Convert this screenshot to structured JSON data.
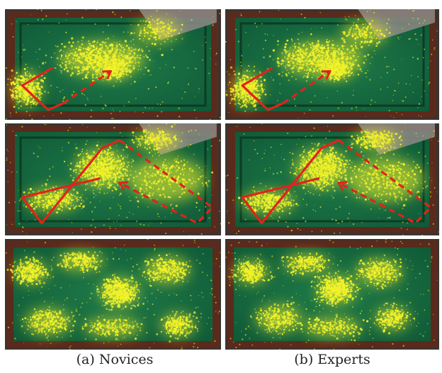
{
  "figure": {
    "columns": [
      {
        "caption": "(a) Novices"
      },
      {
        "caption": "(b) Experts"
      }
    ],
    "rows": [
      {
        "scene": "table-top-left",
        "path": "L-shaped route, dashed arrow to the upper-center"
      },
      {
        "scene": "table-diagonal",
        "path": "rectangular route, dashed return arrow"
      },
      {
        "scene": "table-full-view",
        "path": "none"
      }
    ],
    "colors": {
      "felt": "#1f7a48",
      "felt_dark": "#0f5a38",
      "rail": "#5a2a1c",
      "gaze": "#f2f22a",
      "path": "#e2231a",
      "background": "#ffffff"
    }
  }
}
